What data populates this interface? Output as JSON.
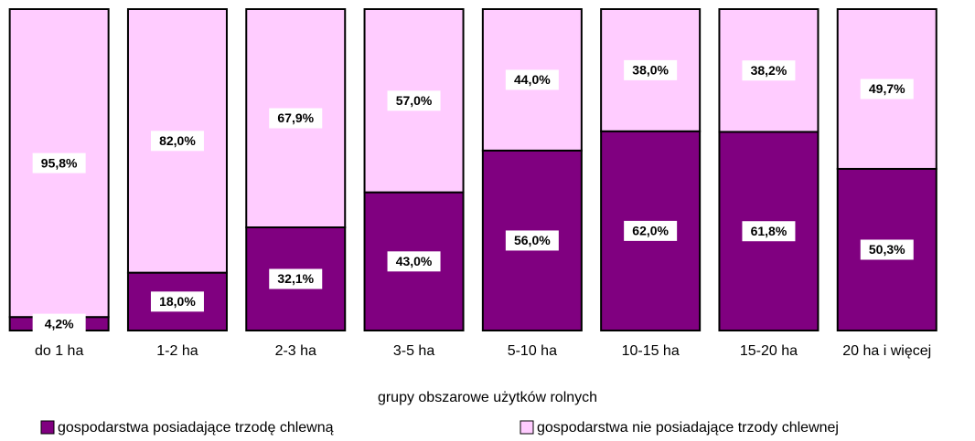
{
  "chart_data": {
    "type": "stacked_bar",
    "categories": [
      "do 1 ha",
      "1-2 ha",
      "2-3 ha",
      "3-5 ha",
      "5-10 ha",
      "10-15 ha",
      "15-20 ha",
      "20 ha i więcej"
    ],
    "series": [
      {
        "name": "gospodarstwa posiadające trzodę chlewną",
        "color": "#800080",
        "values": [
          4.2,
          18.0,
          32.1,
          43.0,
          56.0,
          62.0,
          61.8,
          50.3
        ],
        "value_labels": [
          "4,2%",
          "18,0%",
          "32,1%",
          "43,0%",
          "56,0%",
          "62,0%",
          "61,8%",
          "50,3%"
        ]
      },
      {
        "name": "gospodarstwa nie posiadające trzody chlewnej",
        "color": "#ffccff",
        "values": [
          95.8,
          82.0,
          67.9,
          57.0,
          44.0,
          38.0,
          38.2,
          49.7
        ],
        "value_labels": [
          "95,8%",
          "82,0%",
          "67,9%",
          "57,0%",
          "44,0%",
          "38,0%",
          "38,2%",
          "49,7%"
        ]
      }
    ],
    "xlabel": "grupy obszarowe użytków rolnych",
    "ylim": [
      0,
      100
    ]
  }
}
